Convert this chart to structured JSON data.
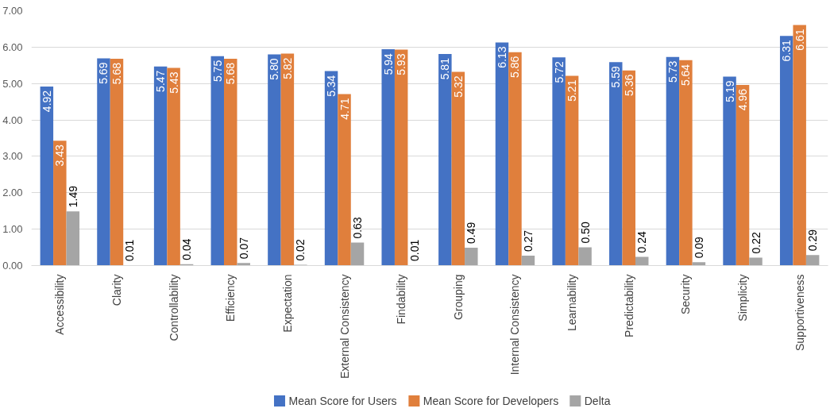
{
  "chart_data": {
    "type": "bar",
    "categories": [
      "Accessibility",
      "Clarity",
      "Controllability",
      "Efficiency",
      "Expectation",
      "External Consistency",
      "Findability",
      "Grouping",
      "Internal Consistency",
      "Learnability",
      "Predictability",
      "Security",
      "Simplicity",
      "Supportiveness"
    ],
    "series": [
      {
        "name": "Mean Score for Users",
        "color": "#4472c4",
        "values": [
          4.92,
          5.69,
          5.47,
          5.75,
          5.8,
          5.34,
          5.94,
          5.81,
          6.13,
          5.72,
          5.59,
          5.73,
          5.19,
          6.31
        ],
        "value_labels": [
          "4.92",
          "5.69",
          "5.47",
          "5.75",
          "5.80",
          "5.34",
          "5.94",
          "5.81",
          "6.13",
          "5.72",
          "5.59",
          "5.73",
          "5.19",
          "6.31"
        ]
      },
      {
        "name": "Mean Score for Developers",
        "color": "#e07f3c",
        "values": [
          3.43,
          5.68,
          5.43,
          5.68,
          5.82,
          4.71,
          5.93,
          5.32,
          5.86,
          5.21,
          5.36,
          5.64,
          4.96,
          6.61
        ],
        "value_labels": [
          "3.43",
          "5.68",
          "5.43",
          "5.68",
          "5.82",
          "4.71",
          "5.93",
          "5.32",
          "5.86",
          "5.21",
          "5.36",
          "5.64",
          "4.96",
          "6.61"
        ]
      },
      {
        "name": "Delta",
        "color": "#a5a5a5",
        "values": [
          1.49,
          0.01,
          0.04,
          0.07,
          0.02,
          0.63,
          0.01,
          0.49,
          0.27,
          0.5,
          0.24,
          0.09,
          0.22,
          0.29
        ],
        "value_labels": [
          "1.49",
          "0.01",
          "0.04",
          "0.07",
          "0.02",
          "0.63",
          "0.01",
          "0.49",
          "0.27",
          "0.50",
          "0.24",
          "0.09",
          "0.22",
          "0.29"
        ]
      }
    ],
    "ylim": [
      0,
      7
    ],
    "yticks": [
      {
        "value": 0,
        "label": "0.00"
      },
      {
        "value": 1,
        "label": "1.00"
      },
      {
        "value": 2,
        "label": "2.00"
      },
      {
        "value": 3,
        "label": "3.00"
      },
      {
        "value": 4,
        "label": "4.00"
      },
      {
        "value": 5,
        "label": "5.00"
      },
      {
        "value": 6,
        "label": "6.00"
      },
      {
        "value": 7,
        "label": "7.00"
      }
    ],
    "grid": "y",
    "legend": "bottom"
  }
}
